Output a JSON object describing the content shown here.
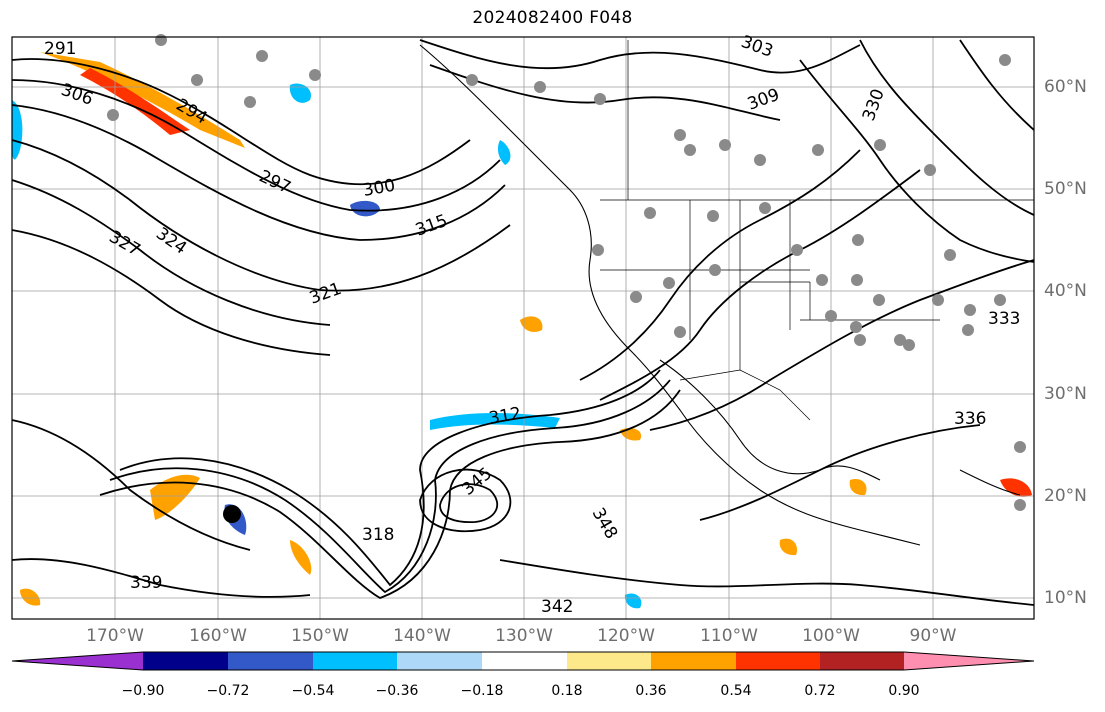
{
  "title": "2024082400 F048",
  "lon_labels": [
    "170°W",
    "160°W",
    "150°W",
    "140°W",
    "130°W",
    "120°W",
    "110°W",
    "100°W",
    "90°W"
  ],
  "lat_labels": [
    "60°N",
    "50°N",
    "40°N",
    "30°N",
    "20°N",
    "10°N"
  ],
  "colorbar": {
    "colors": [
      "#9b30d0",
      "#00008b",
      "#3359c8",
      "#00bfff",
      "#add8f7",
      "#ffffff",
      "#fde98a",
      "#ffa200",
      "#ff3300",
      "#b22222",
      "#ff8fb0"
    ],
    "tick_labels": [
      "−0.90",
      "−0.72",
      "−0.54",
      "−0.36",
      "−0.18",
      "0.18",
      "0.36",
      "0.54",
      "0.72",
      "0.90"
    ]
  },
  "contour_labels": [
    "291",
    "294",
    "297",
    "300",
    "303",
    "306",
    "309",
    "312",
    "315",
    "318",
    "321",
    "324",
    "327",
    "330",
    "333",
    "336",
    "339",
    "342",
    "345",
    "348"
  ],
  "map_layers": [
    "coastlines",
    "state-borders",
    "country-borders",
    "gridlines",
    "theta-contours",
    "shaded-tendency",
    "station-dots"
  ]
}
